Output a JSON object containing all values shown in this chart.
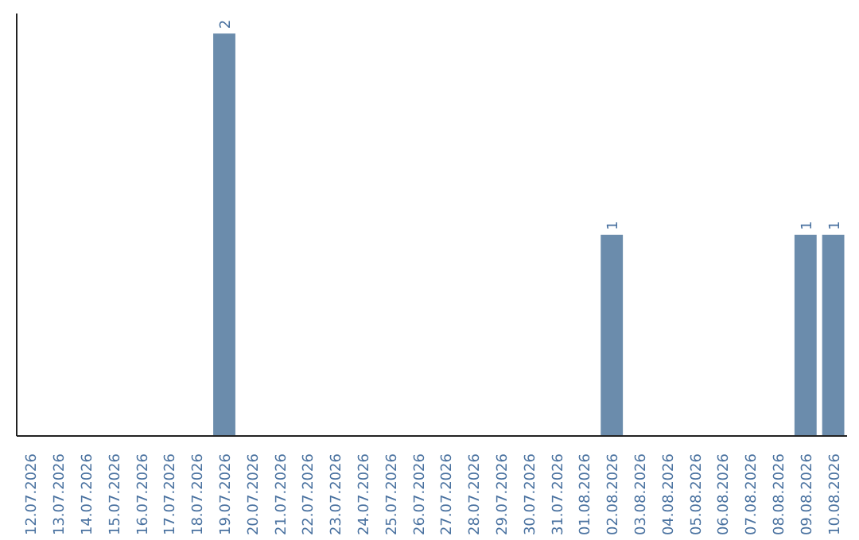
{
  "chart_data": {
    "type": "bar",
    "categories": [
      "12.07.2026",
      "13.07.2026",
      "14.07.2026",
      "15.07.2026",
      "16.07.2026",
      "17.07.2026",
      "18.07.2026",
      "19.07.2026",
      "20.07.2026",
      "21.07.2026",
      "22.07.2026",
      "23.07.2026",
      "24.07.2026",
      "25.07.2026",
      "26.07.2026",
      "27.07.2026",
      "28.07.2026",
      "29.07.2026",
      "30.07.2026",
      "31.07.2026",
      "01.08.2026",
      "02.08.2026",
      "03.08.2026",
      "04.08.2026",
      "05.08.2026",
      "06.08.2026",
      "07.08.2026",
      "08.08.2026",
      "09.08.2026",
      "10.08.2026"
    ],
    "values": [
      0,
      0,
      0,
      0,
      0,
      0,
      0,
      2,
      0,
      0,
      0,
      0,
      0,
      0,
      0,
      0,
      0,
      0,
      0,
      0,
      0,
      1,
      0,
      0,
      0,
      0,
      0,
      0,
      1,
      1
    ],
    "value_labels": [
      null,
      null,
      null,
      null,
      null,
      null,
      null,
      "2",
      null,
      null,
      null,
      null,
      null,
      null,
      null,
      null,
      null,
      null,
      null,
      null,
      null,
      "1",
      null,
      null,
      null,
      null,
      null,
      null,
      "1",
      "1"
    ],
    "color": "#6b8cac",
    "ylim": [
      0,
      2.1
    ],
    "tick_labels": "x",
    "grid": false
  }
}
